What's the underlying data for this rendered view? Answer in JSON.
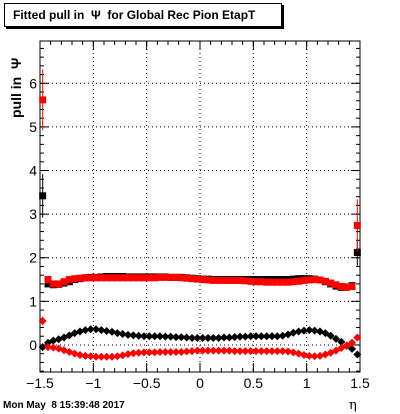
{
  "title": "Fitted pull in  Ψ  for Global Rec Pion EtapT",
  "timestamp": "Mon May  8 15:39:48 2017",
  "chart_data": {
    "type": "scatter",
    "title": "Fitted pull in  Ψ  for Global Rec Pion EtapT",
    "xlabel": "η",
    "ylabel": "pull in  Ψ",
    "xlim": [
      -1.5,
      1.5
    ],
    "ylim": [
      -0.62,
      6.97
    ],
    "xticks": [
      -1.5,
      -1,
      -0.5,
      0,
      0.5,
      1,
      1.5
    ],
    "xtick_labels": [
      "−1.5",
      "−1",
      "−0.5",
      "0",
      "0.5",
      "1",
      "1.5"
    ],
    "yticks": [
      0,
      1,
      2,
      3,
      4,
      5,
      6
    ],
    "ytick_labels": [
      "0",
      "1",
      "2",
      "3",
      "4",
      "5",
      "6"
    ],
    "grid": true,
    "x": [
      -1.475,
      -1.425,
      -1.375,
      -1.325,
      -1.275,
      -1.225,
      -1.175,
      -1.125,
      -1.075,
      -1.025,
      -0.975,
      -0.925,
      -0.875,
      -0.825,
      -0.775,
      -0.725,
      -0.675,
      -0.625,
      -0.575,
      -0.525,
      -0.475,
      -0.425,
      -0.375,
      -0.325,
      -0.275,
      -0.225,
      -0.175,
      -0.125,
      -0.075,
      -0.025,
      0.025,
      0.075,
      0.125,
      0.175,
      0.225,
      0.275,
      0.325,
      0.375,
      0.425,
      0.475,
      0.525,
      0.575,
      0.625,
      0.675,
      0.725,
      0.775,
      0.825,
      0.875,
      0.925,
      0.975,
      1.025,
      1.075,
      1.125,
      1.175,
      1.225,
      1.275,
      1.325,
      1.375,
      1.425,
      1.475
    ],
    "series": [
      {
        "color": "#000000",
        "marker": "square",
        "values": [
          3.42,
          1.4,
          1.38,
          1.39,
          1.42,
          1.45,
          1.5,
          1.52,
          1.54,
          1.55,
          1.55,
          1.56,
          1.57,
          1.57,
          1.57,
          1.57,
          1.56,
          1.56,
          1.56,
          1.56,
          1.56,
          1.56,
          1.56,
          1.56,
          1.55,
          1.55,
          1.55,
          1.54,
          1.53,
          1.52,
          1.51,
          1.51,
          1.5,
          1.5,
          1.5,
          1.5,
          1.5,
          1.5,
          1.5,
          1.5,
          1.5,
          1.5,
          1.5,
          1.5,
          1.5,
          1.5,
          1.5,
          1.51,
          1.52,
          1.52,
          1.52,
          1.51,
          1.49,
          1.45,
          1.4,
          1.35,
          1.32,
          1.33,
          1.36,
          2.12
        ],
        "yerr": [
          0.5,
          0.05,
          0.03,
          0.03,
          0.03,
          0.03,
          0.03,
          0.03,
          0.03,
          0.03,
          0.03,
          0.03,
          0.03,
          0.03,
          0.03,
          0.03,
          0.03,
          0.03,
          0.03,
          0.03,
          0.03,
          0.03,
          0.03,
          0.03,
          0.03,
          0.03,
          0.03,
          0.03,
          0.03,
          0.03,
          0.03,
          0.03,
          0.03,
          0.03,
          0.03,
          0.03,
          0.03,
          0.03,
          0.03,
          0.03,
          0.03,
          0.03,
          0.03,
          0.03,
          0.03,
          0.03,
          0.03,
          0.03,
          0.03,
          0.03,
          0.03,
          0.03,
          0.03,
          0.03,
          0.03,
          0.03,
          0.03,
          0.03,
          0.05,
          0.3
        ]
      },
      {
        "color": "#ff0000",
        "marker": "square",
        "values": [
          5.62,
          1.5,
          1.4,
          1.4,
          1.45,
          1.5,
          1.52,
          1.53,
          1.54,
          1.54,
          1.54,
          1.54,
          1.54,
          1.54,
          1.54,
          1.54,
          1.54,
          1.54,
          1.54,
          1.54,
          1.54,
          1.54,
          1.55,
          1.55,
          1.55,
          1.55,
          1.54,
          1.53,
          1.52,
          1.51,
          1.5,
          1.49,
          1.48,
          1.48,
          1.48,
          1.48,
          1.48,
          1.48,
          1.47,
          1.46,
          1.45,
          1.45,
          1.44,
          1.44,
          1.44,
          1.44,
          1.44,
          1.45,
          1.46,
          1.48,
          1.49,
          1.5,
          1.49,
          1.46,
          1.42,
          1.38,
          1.34,
          1.32,
          1.34,
          2.74
        ],
        "yerr": [
          0.7,
          0.05,
          0.03,
          0.03,
          0.03,
          0.03,
          0.03,
          0.03,
          0.03,
          0.03,
          0.03,
          0.03,
          0.03,
          0.03,
          0.03,
          0.03,
          0.03,
          0.03,
          0.03,
          0.03,
          0.03,
          0.03,
          0.03,
          0.03,
          0.03,
          0.03,
          0.03,
          0.03,
          0.03,
          0.03,
          0.03,
          0.03,
          0.03,
          0.03,
          0.03,
          0.03,
          0.03,
          0.03,
          0.03,
          0.03,
          0.03,
          0.03,
          0.03,
          0.03,
          0.03,
          0.03,
          0.03,
          0.03,
          0.03,
          0.03,
          0.03,
          0.03,
          0.03,
          0.03,
          0.03,
          0.03,
          0.03,
          0.03,
          0.05,
          0.6
        ]
      },
      {
        "color": "#000000",
        "marker": "diamond",
        "values": [
          -0.05,
          0.05,
          0.1,
          0.13,
          0.17,
          0.22,
          0.27,
          0.31,
          0.34,
          0.36,
          0.36,
          0.34,
          0.32,
          0.3,
          0.27,
          0.25,
          0.23,
          0.22,
          0.21,
          0.2,
          0.2,
          0.2,
          0.2,
          0.19,
          0.19,
          0.18,
          0.18,
          0.17,
          0.16,
          0.16,
          0.16,
          0.16,
          0.16,
          0.16,
          0.17,
          0.17,
          0.18,
          0.19,
          0.19,
          0.2,
          0.2,
          0.2,
          0.2,
          0.2,
          0.2,
          0.21,
          0.24,
          0.28,
          0.31,
          0.33,
          0.34,
          0.33,
          0.31,
          0.27,
          0.21,
          0.14,
          0.07,
          -0.02,
          -0.09,
          -0.22
        ],
        "yerr": [
          0.05,
          0.02,
          0.02,
          0.02,
          0.02,
          0.02,
          0.02,
          0.02,
          0.02,
          0.02,
          0.02,
          0.02,
          0.02,
          0.02,
          0.02,
          0.02,
          0.02,
          0.02,
          0.02,
          0.02,
          0.02,
          0.02,
          0.02,
          0.02,
          0.02,
          0.02,
          0.02,
          0.02,
          0.02,
          0.02,
          0.02,
          0.02,
          0.02,
          0.02,
          0.02,
          0.02,
          0.02,
          0.02,
          0.02,
          0.02,
          0.02,
          0.02,
          0.02,
          0.02,
          0.02,
          0.02,
          0.02,
          0.02,
          0.02,
          0.02,
          0.02,
          0.02,
          0.02,
          0.02,
          0.02,
          0.02,
          0.02,
          0.02,
          0.02,
          0.05
        ]
      },
      {
        "color": "#ff0000",
        "marker": "diamond",
        "values": [
          0.55,
          -0.05,
          -0.06,
          -0.08,
          -0.12,
          -0.16,
          -0.2,
          -0.23,
          -0.25,
          -0.26,
          -0.27,
          -0.27,
          -0.27,
          -0.27,
          -0.26,
          -0.24,
          -0.21,
          -0.19,
          -0.18,
          -0.17,
          -0.17,
          -0.17,
          -0.16,
          -0.16,
          -0.16,
          -0.16,
          -0.16,
          -0.15,
          -0.14,
          -0.13,
          -0.13,
          -0.13,
          -0.13,
          -0.13,
          -0.13,
          -0.13,
          -0.14,
          -0.14,
          -0.14,
          -0.14,
          -0.14,
          -0.14,
          -0.14,
          -0.14,
          -0.14,
          -0.14,
          -0.15,
          -0.17,
          -0.2,
          -0.23,
          -0.25,
          -0.26,
          -0.25,
          -0.22,
          -0.18,
          -0.13,
          -0.07,
          -0.01,
          0.05,
          0.17
        ],
        "yerr": [
          0.1,
          0.02,
          0.02,
          0.02,
          0.02,
          0.02,
          0.02,
          0.02,
          0.02,
          0.02,
          0.02,
          0.02,
          0.02,
          0.02,
          0.02,
          0.02,
          0.02,
          0.02,
          0.02,
          0.02,
          0.02,
          0.02,
          0.02,
          0.02,
          0.02,
          0.02,
          0.02,
          0.02,
          0.02,
          0.02,
          0.02,
          0.02,
          0.02,
          0.02,
          0.02,
          0.02,
          0.02,
          0.02,
          0.02,
          0.02,
          0.02,
          0.02,
          0.02,
          0.02,
          0.02,
          0.02,
          0.02,
          0.02,
          0.02,
          0.02,
          0.02,
          0.02,
          0.02,
          0.02,
          0.02,
          0.02,
          0.02,
          0.02,
          0.02,
          0.05
        ]
      }
    ]
  }
}
